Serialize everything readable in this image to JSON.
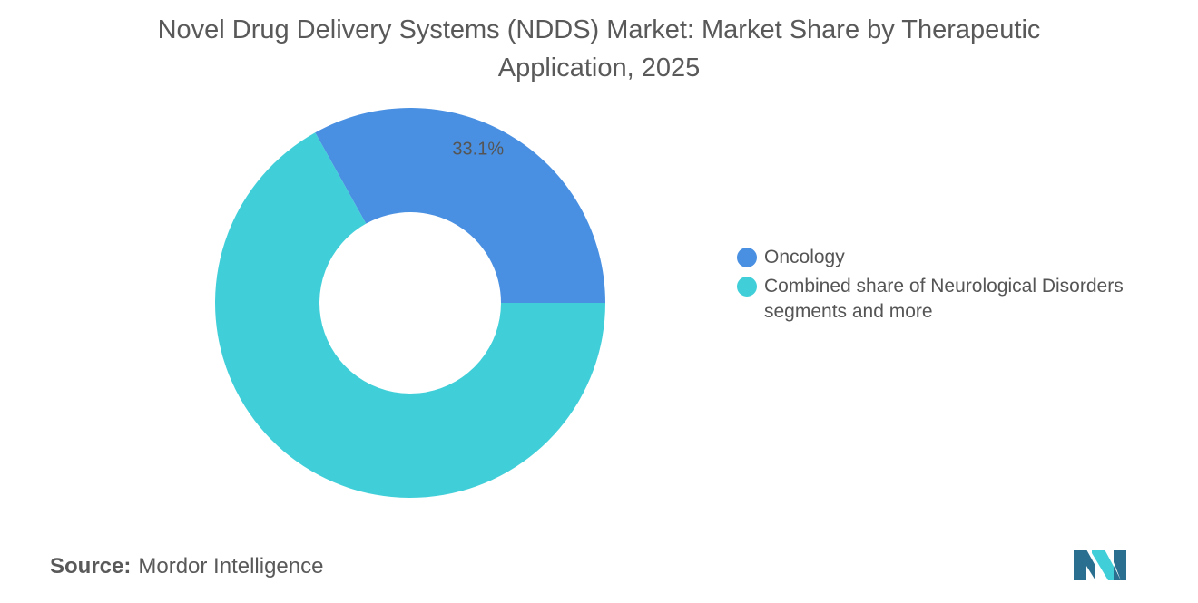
{
  "chart_data": {
    "type": "pie",
    "title": "Novel Drug Delivery Systems (NDDS) Market: Market Share by Therapeutic Application, 2025",
    "legend_position": "right",
    "donut": true,
    "series": [
      {
        "name": "Oncology",
        "value": 33.1,
        "label": "33.1%",
        "color": "#4A90E2"
      },
      {
        "name": "Combined share of Neurological Disorders segments and more",
        "value": 66.9,
        "label": "",
        "color": "#40CFD9"
      }
    ]
  },
  "source": {
    "label": "Source:",
    "text": "Mordor Intelligence"
  },
  "logo": {
    "icon": "mordor-intelligence-logo-icon",
    "colors": [
      "#2A6F8F",
      "#40CFD9"
    ]
  }
}
